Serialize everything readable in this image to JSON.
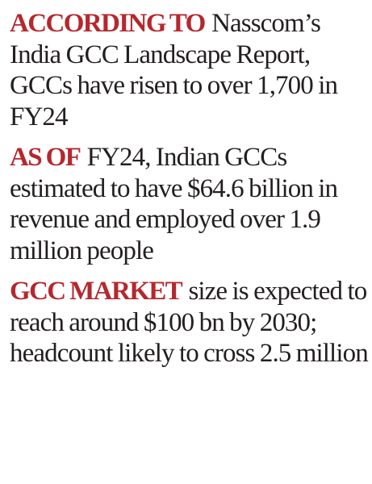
{
  "accent_color": "#b5282e",
  "text_color": "#231f20",
  "items": [
    {
      "lead": "ACCORDING TO",
      "text": "Nasscom’s India GCC Landscape Report, GCCs have risen to over 1,700 in FY24"
    },
    {
      "lead": "AS OF",
      "text": "FY24, Indian GCCs estimated to have $64.6 billion in revenue and employed over 1.9 million people"
    },
    {
      "lead": "GCC MARKET",
      "text": "size is expected to reach around $100 bn by 2030; headcount likely to cross 2.5 million"
    }
  ]
}
